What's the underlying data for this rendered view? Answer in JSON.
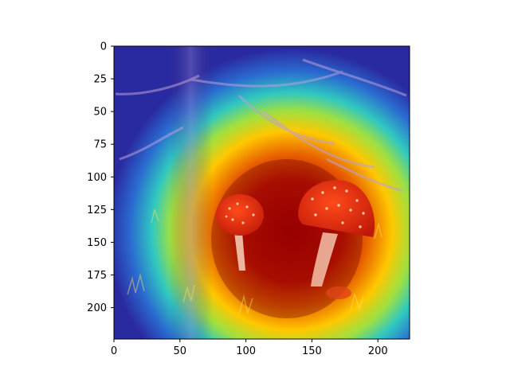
{
  "figure": {
    "type": "heatmap",
    "title": "",
    "colormap": "jet",
    "subject": "two red fly agaric mushrooms in a dark forest with branches and moss, overlaid with an attention heatmap centered on the mushrooms",
    "x_ticks": [
      "0",
      "50",
      "100",
      "150",
      "200"
    ],
    "y_ticks": [
      "0",
      "25",
      "50",
      "75",
      "100",
      "125",
      "150",
      "175",
      "200"
    ],
    "colors": {
      "heat_high": "#c00000",
      "heat_mid": "#ffd400",
      "heat_low": "#2a3ca8",
      "mushroom_cap": "#e83a1e",
      "mushroom_spot": "#ffd8b0"
    }
  },
  "chart_data": {
    "type": "heatmap",
    "xlim": [
      0,
      224
    ],
    "ylim": [
      224,
      0
    ],
    "x_tick_values": [
      0,
      50,
      100,
      150,
      200
    ],
    "y_tick_values": [
      0,
      25,
      50,
      75,
      100,
      125,
      150,
      175,
      200
    ],
    "grid": false
  }
}
